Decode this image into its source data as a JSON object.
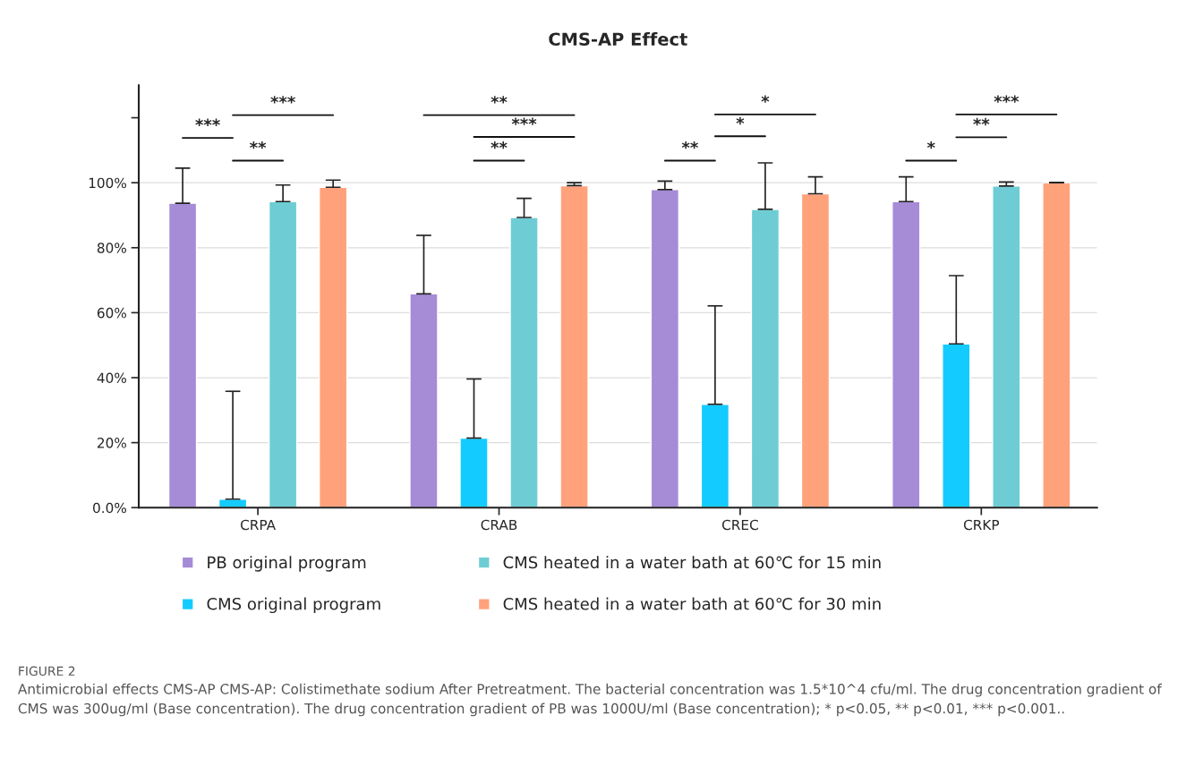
{
  "chart_data": {
    "type": "bar",
    "title": "CMS-AP Effect",
    "categories": [
      "CRPA",
      "CRAB",
      "CREC",
      "CRKP"
    ],
    "series": [
      {
        "name": "PB original program",
        "color": "#a68bd7",
        "values": [
          93.7,
          65.8,
          97.9,
          94.2
        ],
        "errors": [
          [
            93.7,
            104.5
          ],
          [
            65.8,
            83.8
          ],
          [
            97.9,
            100.5
          ],
          [
            94.2,
            101.8
          ]
        ]
      },
      {
        "name": "CMS original program",
        "color": "#14cbff",
        "values": [
          2.6,
          21.4,
          31.8,
          50.4
        ],
        "errors": [
          [
            2.6,
            35.8
          ],
          [
            21.4,
            39.6
          ],
          [
            31.8,
            62.1
          ],
          [
            50.4,
            71.4
          ]
        ]
      },
      {
        "name": "CMS heated in a water bath at 60℃ for 15 min",
        "color": "#6ecdd4",
        "values": [
          94.2,
          89.3,
          91.8,
          99.0
        ],
        "errors": [
          [
            94.2,
            99.3
          ],
          [
            89.3,
            95.2
          ],
          [
            91.8,
            106.1
          ],
          [
            99.0,
            100.2
          ]
        ]
      },
      {
        "name": "CMS heated in a water bath at 60℃ for 30 min",
        "color": "#ffa27b",
        "values": [
          98.6,
          99.1,
          96.6,
          100.0
        ],
        "errors": [
          [
            98.6,
            100.8
          ],
          [
            99.1,
            100.0
          ],
          [
            96.6,
            101.8
          ],
          [
            100.0,
            100.1
          ]
        ]
      }
    ],
    "ylim": [
      0,
      130
    ],
    "yticks": [
      {
        "value": 0,
        "label": "0.0%"
      },
      {
        "value": 20,
        "label": "20%"
      },
      {
        "value": 40,
        "label": "40%"
      },
      {
        "value": 60,
        "label": "60%"
      },
      {
        "value": 80,
        "label": "80%"
      },
      {
        "value": 100,
        "label": "100%"
      },
      {
        "value": 120,
        "label": null
      }
    ],
    "grid": "y",
    "legend": "bottom",
    "annotations": [
      "***",
      "**",
      "***",
      "**",
      "***",
      "**",
      "**",
      "*",
      "*",
      "*",
      "**",
      "***",
      "FIGURE 2",
      "Antimicrobial effects CMS-AP CMS-AP: Colistimethate sodium After Pretreatment. The bacterial concentration was 1.5*10^4 cfu/ml. The drug concentration gradient of CMS was 300ug/ml (Base concentration). The drug concentration gradient of PB was 1000U/ml (Base concentration); * p<0.05, ** p<0.01, *** p<0.001.."
    ]
  }
}
